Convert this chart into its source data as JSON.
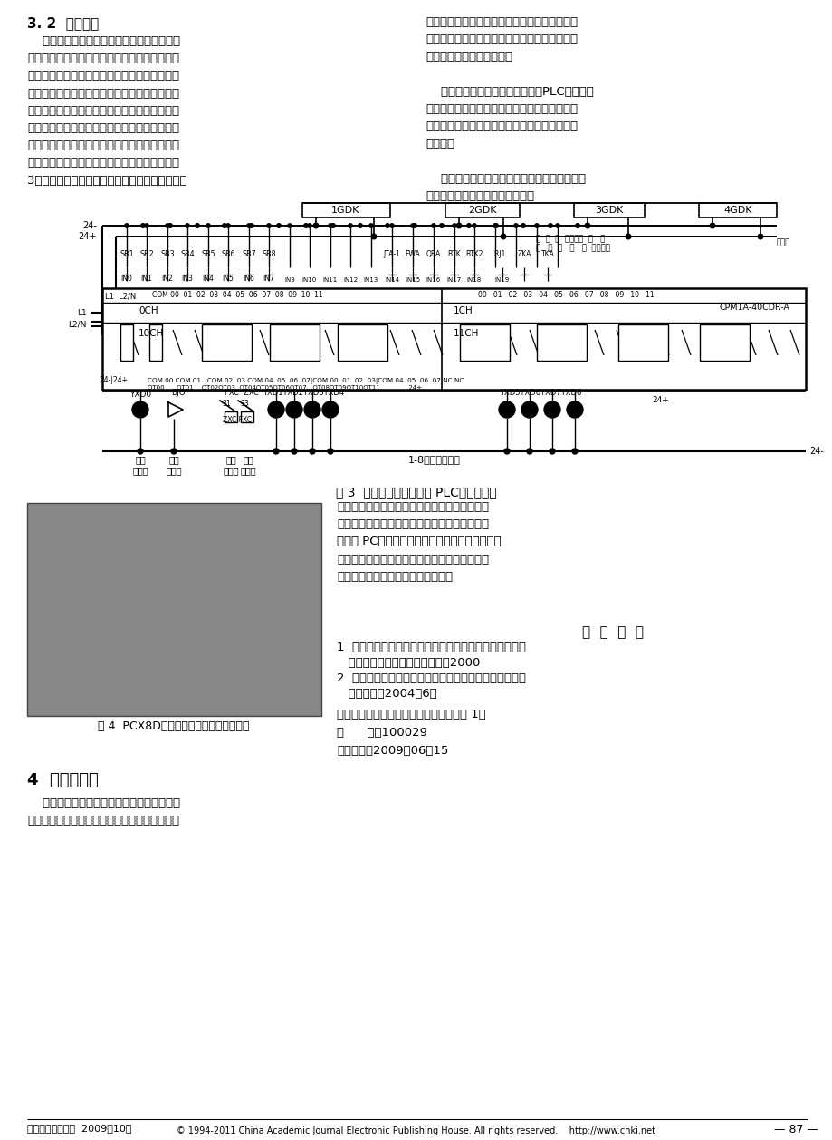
{
  "bg_color": "#ffffff",
  "section_32_title": "3. 2  控制系统",
  "left_col_lines": [
    "    控制系统的主要控制对象是旋转电机，根据",
    "存取车的要求利用按鈕操作，以达到通过改变电",
    "源相序实现载车板的顺时针或逆时针旋转。其次",
    "是控制车库内的各种辅助装置，如指示灯及各种",
    "安全设施等。为了保证载车板能顺时针或逆时针",
    "旋转到指定位置，采用行程开关定位。采用光电",
    "开关判断载车板上有无车辆。小型车库一般选用",
    "按鈕操作，亦可采用触摸屏操作。控制原理见图",
    "3，全开关量输入输出的垂直循环式立体车库电路"
  ],
  "right_col_lines": [
    "简单、对环境要求不高，凭可编程控制器本身的",
    "抗干扰能力和隔离变压器就能满足要求，因此不",
    "必再增加其他抗干扰措施。",
    "",
    "    控制系统的核心可编程控制器（PLC）具有抗",
    "干扰性强、工作稳定可靠、结构模块化等特点。",
    "控制系统检测装置灵敏度高、工作准确可靠、反",
    "馈及时。",
    "",
    "    接触器输出单元动作灵敏、可靠、技术先进、",
    "维护简便，具有过载及短路保护。"
  ],
  "fig3_caption": "图 3  垂直循环式立体车库 PLC控制原理图",
  "right_col2_lines": [
    "有其他过高的建筑地带，或是地处边角处面积很",
    "小分散的地带，均可选择垂直循环式立体车库，",
    "可设置 PC机作为控制系统的上位机，通过灵活、",
    "友好的人机界面，以互联网作为信息通道，实现",
    "对停车库的远程网络化控制和管理。"
  ],
  "references_title": "参  考  文  献",
  "ref1": "1  中华人民共和国机械行业标准．升降横移类机械式停车",
  "ref1b": "   设备．北京：国家机械工业局，2000",
  "ref2": "2  张启君．立体车库的主要形式及技术特点．机电产品开",
  "ref2b": "   发与创新，2004（6）",
  "author_lines": [
    "作者地址：北京市朝阳区太阳宫芍药居甲 1号",
    "邮      编：100029",
    "收稿日期：2009－06－15"
  ],
  "section4_title": "4  结论与展望",
  "section4_text": [
    "    垂直循环式立体车库的设计灵活性较大，当",
    "城市住宅小区内的空地，或是楼与楼之间不允许"
  ],
  "fig4_caption": "图 4  PCX8D型垂直循环式立体车库实物图",
  "footer_left": "《起重运输机械》  2009（10）",
  "footer_right": "— 87 —",
  "footer_copy": "© 1994-2011 China Academic Journal Electronic Publishing House. All rights reserved.    http://www.cnki.net"
}
